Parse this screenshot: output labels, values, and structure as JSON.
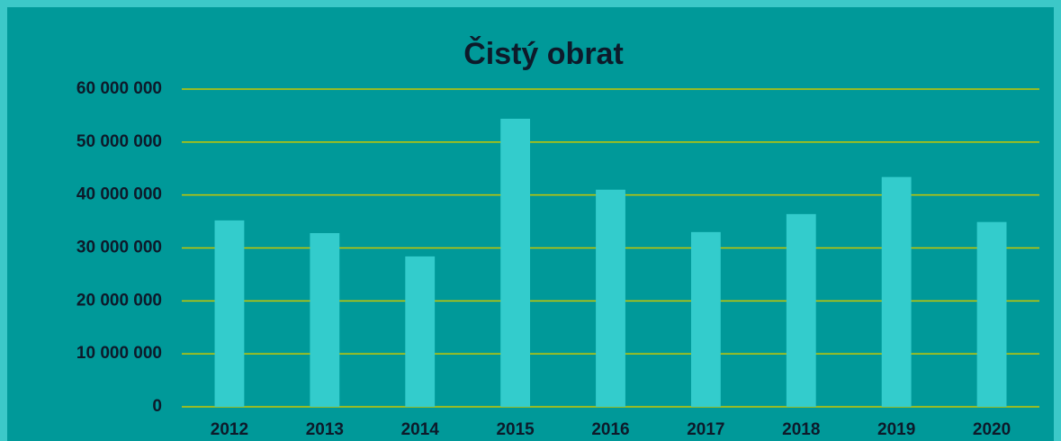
{
  "chart_data": {
    "type": "bar",
    "title": "Čistý obrat",
    "categories": [
      "2012",
      "2013",
      "2014",
      "2015",
      "2016",
      "2017",
      "2018",
      "2019",
      "2020"
    ],
    "values": [
      35200000,
      32800000,
      28400000,
      54400000,
      41000000,
      33000000,
      36400000,
      43400000,
      34900000
    ],
    "color": "#33cccc",
    "ylim": [
      0,
      60000000
    ],
    "yticks": [
      0,
      {
        "value": 10000000,
        "label": "10 000 000"
      },
      {
        "value": 20000000,
        "label": "20 000 000"
      },
      {
        "value": 30000000,
        "label": "30 000 000"
      },
      {
        "value": 40000000,
        "label": "40 000 000"
      },
      {
        "value": 50000000,
        "label": "50 000 000"
      },
      {
        "value": 60000000,
        "label": "60 000 000"
      }
    ],
    "grid": true
  }
}
